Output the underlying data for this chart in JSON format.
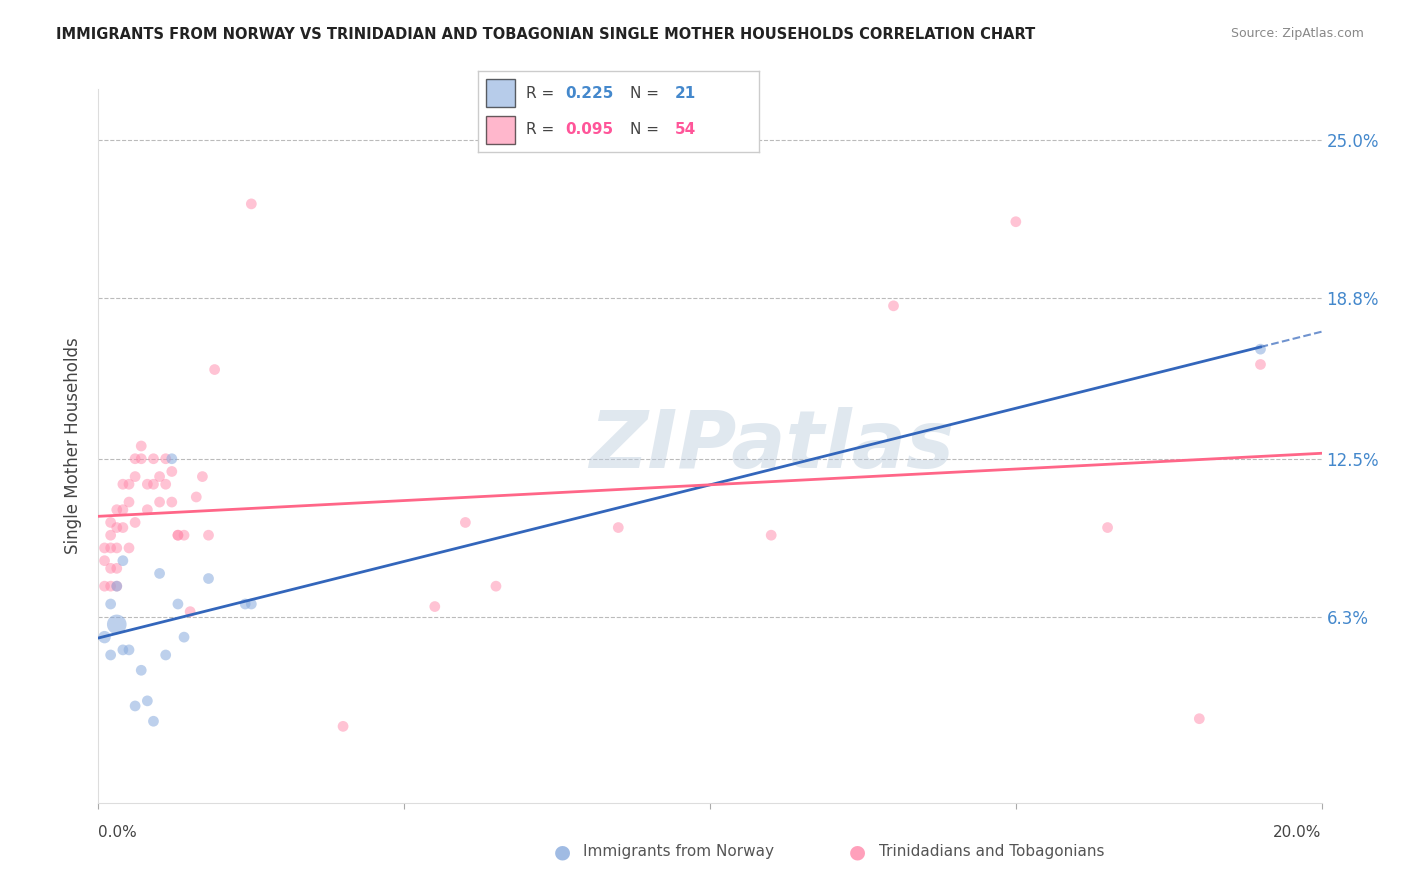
{
  "title": "IMMIGRANTS FROM NORWAY VS TRINIDADIAN AND TOBAGONIAN SINGLE MOTHER HOUSEHOLDS CORRELATION CHART",
  "source": "Source: ZipAtlas.com",
  "ylabel": "Single Mother Households",
  "ytick_values": [
    0.063,
    0.125,
    0.188,
    0.25
  ],
  "ytick_labels": [
    "6.3%",
    "12.5%",
    "18.8%",
    "25.0%"
  ],
  "xlim": [
    0.0,
    0.2
  ],
  "ylim": [
    -0.01,
    0.27
  ],
  "watermark": "ZIPatlas",
  "legend_blue_r": "0.225",
  "legend_blue_n": "21",
  "legend_pink_r": "0.095",
  "legend_pink_n": "54",
  "blue_scatter_color": "#88AADD",
  "pink_scatter_color": "#FF88AA",
  "blue_line_color": "#3366BB",
  "pink_line_color": "#FF6688",
  "norway_x": [
    0.001,
    0.002,
    0.002,
    0.003,
    0.003,
    0.004,
    0.004,
    0.005,
    0.006,
    0.007,
    0.008,
    0.009,
    0.01,
    0.011,
    0.012,
    0.013,
    0.014,
    0.018,
    0.024,
    0.025,
    0.19
  ],
  "norway_y": [
    0.055,
    0.068,
    0.048,
    0.06,
    0.075,
    0.085,
    0.05,
    0.05,
    0.028,
    0.042,
    0.03,
    0.022,
    0.08,
    0.048,
    0.125,
    0.068,
    0.055,
    0.078,
    0.068,
    0.068,
    0.168
  ],
  "norway_sizes": [
    80,
    60,
    60,
    200,
    60,
    60,
    60,
    60,
    60,
    60,
    60,
    60,
    60,
    60,
    60,
    60,
    60,
    60,
    60,
    60,
    60
  ],
  "trini_x": [
    0.001,
    0.001,
    0.001,
    0.002,
    0.002,
    0.002,
    0.002,
    0.002,
    0.003,
    0.003,
    0.003,
    0.003,
    0.003,
    0.004,
    0.004,
    0.004,
    0.005,
    0.005,
    0.005,
    0.006,
    0.006,
    0.006,
    0.007,
    0.007,
    0.008,
    0.008,
    0.009,
    0.009,
    0.01,
    0.01,
    0.011,
    0.011,
    0.012,
    0.012,
    0.013,
    0.013,
    0.014,
    0.015,
    0.016,
    0.017,
    0.018,
    0.019,
    0.025,
    0.04,
    0.055,
    0.06,
    0.065,
    0.085,
    0.11,
    0.13,
    0.15,
    0.165,
    0.18,
    0.19
  ],
  "trini_y": [
    0.09,
    0.085,
    0.075,
    0.1,
    0.095,
    0.09,
    0.082,
    0.075,
    0.105,
    0.098,
    0.09,
    0.082,
    0.075,
    0.115,
    0.105,
    0.098,
    0.115,
    0.108,
    0.09,
    0.125,
    0.118,
    0.1,
    0.13,
    0.125,
    0.115,
    0.105,
    0.125,
    0.115,
    0.118,
    0.108,
    0.125,
    0.115,
    0.12,
    0.108,
    0.095,
    0.095,
    0.095,
    0.065,
    0.11,
    0.118,
    0.095,
    0.16,
    0.225,
    0.02,
    0.067,
    0.1,
    0.075,
    0.098,
    0.095,
    0.185,
    0.218,
    0.098,
    0.023,
    0.162
  ],
  "trini_sizes": [
    60,
    60,
    60,
    60,
    60,
    60,
    60,
    60,
    60,
    60,
    60,
    60,
    60,
    60,
    60,
    60,
    60,
    60,
    60,
    60,
    60,
    60,
    60,
    60,
    60,
    60,
    60,
    60,
    60,
    60,
    60,
    60,
    60,
    60,
    60,
    60,
    60,
    60,
    60,
    60,
    60,
    60,
    60,
    60,
    60,
    60,
    60,
    60,
    60,
    60,
    60,
    60,
    60,
    60
  ]
}
